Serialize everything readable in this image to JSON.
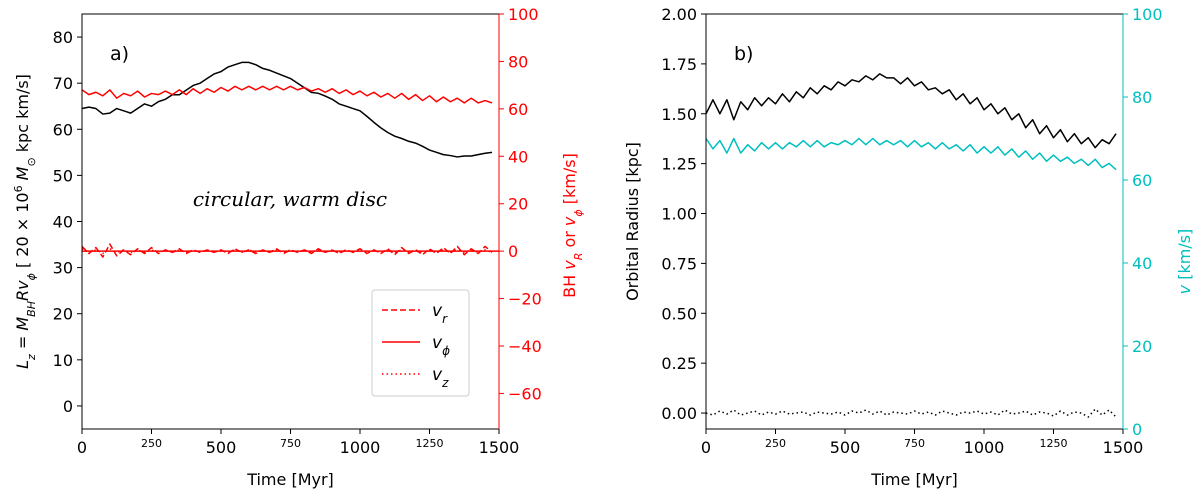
{
  "chart_data": [
    {
      "type": "line",
      "panel_label": "a)",
      "annotation": "circular, warm disc",
      "xlabel": "Time [Myr]",
      "ylabel": "L_z = M_BH R v_φ [ 20 × 10^6 M_⊙ kpc km/s]",
      "ylabel_right": "BH v_R or v_φ [km/s]",
      "right_axis_color": "#ff0000",
      "xlim": [
        0,
        1500
      ],
      "ylim": [
        -5,
        85
      ],
      "ylim_right": [
        -75,
        100
      ],
      "x_ticks": [
        0,
        250,
        500,
        750,
        1000,
        1250,
        1500
      ],
      "x_tick_labels": [
        "0",
        "250",
        "500",
        "750",
        "1000",
        "1250",
        "1500"
      ],
      "y_ticks": [
        0,
        10,
        20,
        30,
        40,
        50,
        60,
        70,
        80
      ],
      "y_tick_labels": [
        "0",
        "10",
        "20",
        "30",
        "40",
        "50",
        "60",
        "70",
        "80"
      ],
      "y_right_ticks": [
        -60,
        -40,
        -20,
        0,
        20,
        40,
        60,
        80,
        100
      ],
      "y_right_tick_labels": [
        "−60",
        "−40",
        "−20",
        "0",
        "20",
        "40",
        "60",
        "80",
        "100"
      ],
      "legend": {
        "position": "lower-right",
        "entries": [
          {
            "label": "v_r",
            "style": "dashed"
          },
          {
            "label": "v_φ",
            "style": "solid"
          },
          {
            "label": "v_z",
            "style": "dotted"
          }
        ]
      },
      "series": [
        {
          "axis": "left",
          "color": "#000000",
          "style": "solid",
          "x": [
            0,
            25,
            50,
            75,
            100,
            125,
            150,
            175,
            200,
            225,
            250,
            275,
            300,
            325,
            350,
            375,
            400,
            425,
            450,
            475,
            500,
            525,
            550,
            575,
            600,
            625,
            650,
            675,
            700,
            725,
            750,
            775,
            800,
            825,
            850,
            875,
            900,
            925,
            950,
            975,
            1000,
            1025,
            1050,
            1075,
            1100,
            1125,
            1150,
            1175,
            1200,
            1225,
            1250,
            1275,
            1300,
            1325,
            1350,
            1375,
            1400,
            1425,
            1450,
            1475
          ],
          "y": [
            64.5,
            64.8,
            64.5,
            63.3,
            63.5,
            64.5,
            64,
            63.5,
            64.5,
            65.5,
            65,
            66,
            66.5,
            67.5,
            67.5,
            68.5,
            69.5,
            70,
            71,
            72,
            72.5,
            73.5,
            74,
            74.5,
            74.5,
            74,
            73.2,
            72.8,
            72.2,
            71.6,
            71,
            70,
            69,
            68,
            67.8,
            67.2,
            66.5,
            65.5,
            65,
            64.5,
            64,
            62.8,
            61.5,
            60.3,
            59.3,
            58.5,
            58,
            57.4,
            57,
            56.3,
            55.5,
            55,
            54.5,
            54.3,
            54,
            54.2,
            54.2,
            54.5,
            54.8,
            55
          ]
        },
        {
          "axis": "right",
          "color": "#ff0000",
          "style": "solid",
          "x": [
            0,
            25,
            50,
            75,
            100,
            125,
            150,
            175,
            200,
            225,
            250,
            275,
            300,
            325,
            350,
            375,
            400,
            425,
            450,
            475,
            500,
            525,
            550,
            575,
            600,
            625,
            650,
            675,
            700,
            725,
            750,
            775,
            800,
            825,
            850,
            875,
            900,
            925,
            950,
            975,
            1000,
            1025,
            1050,
            1075,
            1100,
            1125,
            1150,
            1175,
            1200,
            1225,
            1250,
            1275,
            1300,
            1325,
            1350,
            1375,
            1400,
            1425,
            1450,
            1475
          ],
          "y": [
            68,
            66,
            67,
            65.5,
            68,
            64.5,
            66.5,
            65.5,
            67.5,
            65,
            66.5,
            66,
            67.5,
            66,
            68,
            66,
            68.5,
            66.5,
            68.5,
            67,
            69,
            67.5,
            69.5,
            68,
            69.5,
            68,
            69.5,
            68,
            69.5,
            68,
            69.5,
            68,
            69,
            67.5,
            68.5,
            67,
            68.5,
            66.5,
            68,
            66,
            67.5,
            65.5,
            67,
            65,
            66.5,
            64.5,
            66.5,
            64,
            66,
            63.5,
            65.5,
            63,
            65,
            63,
            64.5,
            62.5,
            64.5,
            62.5,
            63.5,
            62.5
          ]
        },
        {
          "axis": "right",
          "color": "#ff0000",
          "style": "dashed",
          "x": [
            0,
            25,
            50,
            75,
            100,
            125,
            150,
            175,
            200,
            225,
            250,
            275,
            300,
            325,
            350,
            375,
            400,
            425,
            450,
            475,
            500,
            525,
            550,
            575,
            600,
            625,
            650,
            675,
            700,
            725,
            750,
            775,
            800,
            825,
            850,
            875,
            900,
            925,
            950,
            975,
            1000,
            1025,
            1050,
            1075,
            1100,
            1125,
            1150,
            1175,
            1200,
            1225,
            1250,
            1275,
            1300,
            1325,
            1350,
            1375,
            1400,
            1425,
            1450,
            1475
          ],
          "y": [
            2,
            -1,
            1.5,
            -2.5,
            3,
            -2,
            0.5,
            -1.5,
            1,
            -1,
            1.5,
            -1,
            0.5,
            -0.5,
            1,
            -1,
            0.5,
            -0.5,
            0.5,
            -0.5,
            0.5,
            -1,
            1,
            -0.5,
            0.5,
            -1,
            0.5,
            -0.5,
            1,
            -1,
            0.5,
            -0.5,
            0.5,
            -1,
            1,
            -0.5,
            0.5,
            -1,
            0.5,
            -0.5,
            1,
            -1,
            0.5,
            -1,
            1,
            -1.5,
            1.5,
            -1,
            0.5,
            -1.5,
            1,
            -1,
            1.5,
            -1,
            2,
            -1.5,
            1,
            -1,
            2,
            -0.5
          ]
        },
        {
          "axis": "right",
          "color": "#ff0000",
          "style": "dotted",
          "x": [
            0,
            25,
            50,
            75,
            100,
            125,
            150,
            175,
            200,
            225,
            250,
            275,
            300,
            325,
            350,
            375,
            400,
            425,
            450,
            475,
            500,
            525,
            550,
            575,
            600,
            625,
            650,
            675,
            700,
            725,
            750,
            775,
            800,
            825,
            850,
            875,
            900,
            925,
            950,
            975,
            1000,
            1025,
            1050,
            1075,
            1100,
            1125,
            1150,
            1175,
            1200,
            1225,
            1250,
            1275,
            1300,
            1325,
            1350,
            1375,
            1400,
            1425,
            1450,
            1475
          ],
          "y": [
            1,
            -0.5,
            0.5,
            -1,
            1,
            -0.5,
            0.5,
            -0.5,
            0.5,
            -0.5,
            0.5,
            -0.5,
            0.5,
            -0.5,
            0.5,
            -0.5,
            0.5,
            -0.5,
            0.5,
            -0.5,
            0.5,
            -0.5,
            0.5,
            -0.5,
            0.5,
            -0.5,
            0.5,
            -0.5,
            0.5,
            -0.5,
            0.5,
            -0.5,
            0.5,
            -0.5,
            0.5,
            -0.5,
            0.5,
            -0.5,
            0.5,
            -0.5,
            0.5,
            -0.5,
            0.5,
            -0.5,
            0.5,
            -0.5,
            0.5,
            -0.5,
            0.5,
            -0.5,
            0.5,
            -0.5,
            0.5,
            -0.5,
            0.5,
            -0.5,
            0.5,
            -0.5,
            0.5,
            -0.5
          ]
        },
        {
          "axis": "right",
          "color": "#ff0000",
          "style": "solid",
          "x": [
            0,
            1500
          ],
          "y": [
            0,
            0
          ]
        }
      ]
    },
    {
      "type": "line",
      "panel_label": "b)",
      "xlabel": "Time [Myr]",
      "ylabel": "Orbital Radius [kpc]",
      "ylabel_right": "v [km/s]",
      "right_axis_color": "#00bfbf",
      "xlim": [
        0,
        1500
      ],
      "ylim": [
        -0.08,
        2.0
      ],
      "ylim_right": [
        0,
        100
      ],
      "x_ticks": [
        0,
        250,
        500,
        750,
        1000,
        1250,
        1500
      ],
      "x_tick_labels": [
        "0",
        "250",
        "500",
        "750",
        "1000",
        "1250",
        "1500"
      ],
      "y_ticks": [
        0,
        0.25,
        0.5,
        0.75,
        1.0,
        1.25,
        1.5,
        1.75,
        2.0
      ],
      "y_tick_labels": [
        "0.00",
        "0.25",
        "0.50",
        "0.75",
        "1.00",
        "1.25",
        "1.50",
        "1.75",
        "2.00"
      ],
      "y_right_ticks": [
        0,
        20,
        40,
        60,
        80,
        100
      ],
      "y_right_tick_labels": [
        "0",
        "20",
        "40",
        "60",
        "80",
        "100"
      ],
      "series": [
        {
          "axis": "left",
          "color": "#000000",
          "style": "solid",
          "x": [
            0,
            25,
            50,
            75,
            100,
            125,
            150,
            175,
            200,
            225,
            250,
            275,
            300,
            325,
            350,
            375,
            400,
            425,
            450,
            475,
            500,
            525,
            550,
            575,
            600,
            625,
            650,
            675,
            700,
            725,
            750,
            775,
            800,
            825,
            850,
            875,
            900,
            925,
            950,
            975,
            1000,
            1025,
            1050,
            1075,
            1100,
            1125,
            1150,
            1175,
            1200,
            1225,
            1250,
            1275,
            1300,
            1325,
            1350,
            1375,
            1400,
            1425,
            1450,
            1475
          ],
          "y": [
            1.5,
            1.57,
            1.5,
            1.57,
            1.47,
            1.56,
            1.52,
            1.58,
            1.54,
            1.58,
            1.55,
            1.6,
            1.56,
            1.61,
            1.58,
            1.63,
            1.6,
            1.64,
            1.62,
            1.66,
            1.64,
            1.67,
            1.66,
            1.69,
            1.67,
            1.7,
            1.68,
            1.68,
            1.65,
            1.68,
            1.64,
            1.66,
            1.62,
            1.63,
            1.6,
            1.62,
            1.57,
            1.6,
            1.55,
            1.58,
            1.52,
            1.55,
            1.5,
            1.53,
            1.47,
            1.5,
            1.43,
            1.47,
            1.4,
            1.44,
            1.38,
            1.42,
            1.36,
            1.4,
            1.35,
            1.38,
            1.33,
            1.37,
            1.35,
            1.4
          ]
        },
        {
          "axis": "right",
          "color": "#00bfbf",
          "style": "solid",
          "x": [
            0,
            25,
            50,
            75,
            100,
            125,
            150,
            175,
            200,
            225,
            250,
            275,
            300,
            325,
            350,
            375,
            400,
            425,
            450,
            475,
            500,
            525,
            550,
            575,
            600,
            625,
            650,
            675,
            700,
            725,
            750,
            775,
            800,
            825,
            850,
            875,
            900,
            925,
            950,
            975,
            1000,
            1025,
            1050,
            1075,
            1100,
            1125,
            1150,
            1175,
            1200,
            1225,
            1250,
            1275,
            1300,
            1325,
            1350,
            1375,
            1400,
            1425,
            1450,
            1475
          ],
          "y": [
            70,
            67.5,
            69.5,
            66.5,
            70,
            66.5,
            68.5,
            67,
            69,
            67.5,
            69,
            67.5,
            69,
            68,
            69.5,
            68,
            69.5,
            68,
            69,
            68.5,
            69.5,
            68.5,
            70,
            68.5,
            70,
            68.5,
            69.5,
            68.5,
            69.5,
            68,
            69.5,
            68,
            69,
            67.5,
            69,
            67.5,
            68.5,
            67,
            68.5,
            66.5,
            68,
            66.5,
            68,
            66,
            67.5,
            65.5,
            67,
            65,
            66.5,
            64.5,
            66,
            64.5,
            65.5,
            64,
            65,
            63.5,
            65,
            63,
            64,
            62.5
          ]
        },
        {
          "axis": "left",
          "color": "#000000",
          "style": "dotted",
          "x": [
            0,
            25,
            50,
            75,
            100,
            125,
            150,
            175,
            200,
            225,
            250,
            275,
            300,
            325,
            350,
            375,
            400,
            425,
            450,
            475,
            500,
            525,
            550,
            575,
            600,
            625,
            650,
            675,
            700,
            725,
            750,
            775,
            800,
            825,
            850,
            875,
            900,
            925,
            950,
            975,
            1000,
            1025,
            1050,
            1075,
            1100,
            1125,
            1150,
            1175,
            1200,
            1225,
            1250,
            1275,
            1300,
            1325,
            1350,
            1375,
            1400,
            1425,
            1450,
            1475
          ],
          "y": [
            0,
            -0.01,
            0.01,
            -0.005,
            0.015,
            -0.01,
            0,
            0.01,
            -0.01,
            0.005,
            -0.005,
            0.01,
            -0.005,
            0,
            0.005,
            -0.01,
            0.005,
            0,
            -0.005,
            0.005,
            -0.01,
            0.01,
            0,
            0.015,
            -0.005,
            0.01,
            -0.01,
            0.005,
            0,
            -0.005,
            0.01,
            -0.005,
            0.005,
            -0.01,
            0.01,
            0,
            -0.01,
            0.005,
            0,
            0.01,
            -0.005,
            0.005,
            -0.01,
            0.015,
            -0.005,
            0,
            0.01,
            -0.01,
            0.005,
            0,
            -0.015,
            0.01,
            -0.01,
            0.005,
            0,
            -0.02,
            0.02,
            -0.01,
            0.015,
            -0.02
          ]
        }
      ]
    }
  ]
}
